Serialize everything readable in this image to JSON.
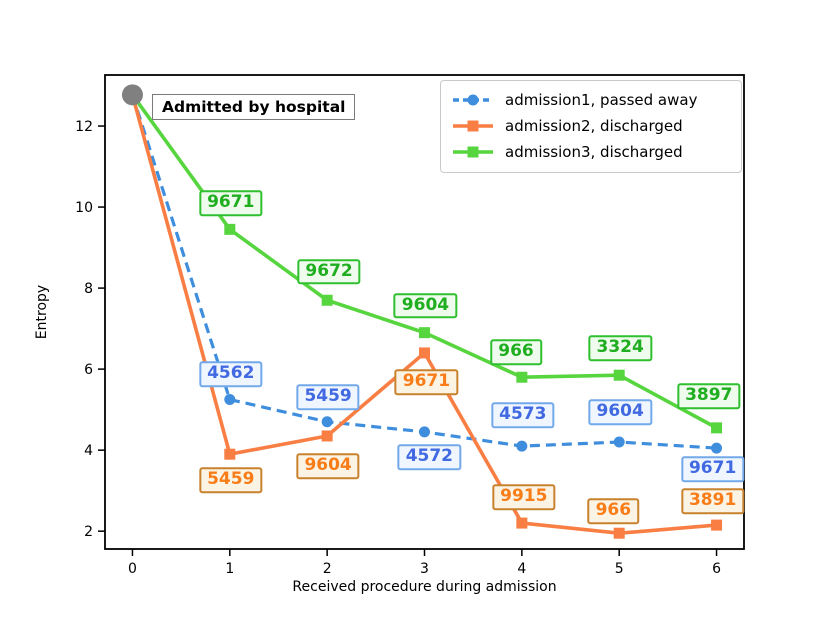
{
  "figure": {
    "background": "#ffffff"
  },
  "chart_data": {
    "type": "line",
    "title": "",
    "xlabel": "Received procedure during admission",
    "ylabel": "Entropy",
    "x": [
      0,
      1,
      2,
      3,
      4,
      5,
      6
    ],
    "x_ticks": [
      "0",
      "1",
      "2",
      "3",
      "4",
      "5",
      "6"
    ],
    "y_tick_values": [
      2,
      4,
      6,
      8,
      10,
      12
    ],
    "y_ticks": [
      "2",
      "4",
      "6",
      "8",
      "10",
      "12"
    ],
    "xlim": [
      -0.282,
      6.282
    ],
    "ylim": [
      1.56,
      13.26
    ],
    "grid": false,
    "legend_position": "upper right",
    "start_point": {
      "x": 0,
      "y": 12.77,
      "color": "#808080",
      "label": "Admitted by hospital"
    },
    "series": [
      {
        "name": "admission1, passed away",
        "color": "#3f8ede",
        "line_style": "dashed",
        "marker": "circle",
        "ann_class": "blue",
        "values": [
          12.77,
          5.25,
          4.7,
          4.45,
          4.1,
          4.2,
          4.05
        ],
        "annotations": [
          {
            "text": "4562",
            "x": 1.01,
            "y": 5.88
          },
          {
            "text": "5459",
            "x": 2.01,
            "y": 5.31
          },
          {
            "text": "4572",
            "x": 3.05,
            "y": 3.83
          },
          {
            "text": "4573",
            "x": 4.01,
            "y": 4.86
          },
          {
            "text": "9604",
            "x": 5.01,
            "y": 4.94
          },
          {
            "text": "9671",
            "x": 5.96,
            "y": 3.53
          }
        ]
      },
      {
        "name": "admission2, discharged",
        "color": "#f97e44",
        "line_style": "solid",
        "marker": "square",
        "ann_class": "orange",
        "values": [
          12.77,
          3.9,
          4.35,
          6.4,
          2.2,
          1.95,
          2.15
        ],
        "annotations": [
          {
            "text": "5459",
            "x": 1.01,
            "y": 3.26
          },
          {
            "text": "9604",
            "x": 2.01,
            "y": 3.6
          },
          {
            "text": "9671",
            "x": 3.02,
            "y": 5.68
          },
          {
            "text": "9915",
            "x": 4.02,
            "y": 2.84
          },
          {
            "text": "966",
            "x": 4.94,
            "y": 2.49
          },
          {
            "text": "3891",
            "x": 5.96,
            "y": 2.74
          }
        ]
      },
      {
        "name": "admission3, discharged",
        "color": "#56d53e",
        "line_style": "solid",
        "marker": "square",
        "ann_class": "green",
        "values": [
          12.77,
          9.45,
          7.7,
          6.9,
          5.8,
          5.85,
          4.55
        ],
        "annotations": [
          {
            "text": "9671",
            "x": 1.01,
            "y": 10.1
          },
          {
            "text": "9672",
            "x": 2.02,
            "y": 8.4
          },
          {
            "text": "9604",
            "x": 3.01,
            "y": 7.56
          },
          {
            "text": "966",
            "x": 3.94,
            "y": 6.42
          },
          {
            "text": "3324",
            "x": 5.01,
            "y": 6.52
          },
          {
            "text": "3897",
            "x": 5.92,
            "y": 5.33
          }
        ]
      }
    ],
    "colors": {
      "axis": "#000000",
      "legend_border": "#c9c9c9",
      "start_point_fill": "#808080",
      "annotation_blue_text": "#4169e1",
      "annotation_orange_text": "#f87d18",
      "annotation_green_text": "#1fae1f"
    }
  }
}
